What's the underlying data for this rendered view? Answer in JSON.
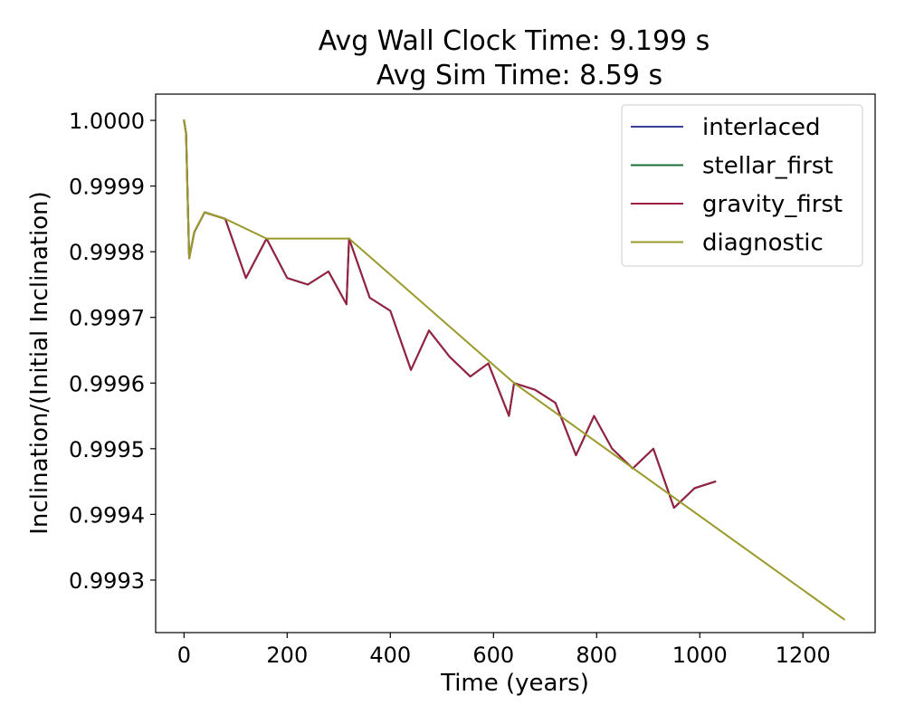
{
  "chart_data": {
    "type": "line",
    "title_line1": "Avg Wall Clock Time: 9.199 s",
    "title_line2": "Avg Sim Time: 8.59 s",
    "xlabel": "Time (years)",
    "ylabel": "Inclination/(Initial Inclination)",
    "xlim": [
      -55,
      1340
    ],
    "ylim": [
      0.99922,
      1.00004
    ],
    "xticks": [
      0,
      200,
      400,
      600,
      800,
      1000,
      1200
    ],
    "xtick_labels": [
      "0",
      "200",
      "400",
      "600",
      "800",
      "1000",
      "1200"
    ],
    "yticks": [
      0.9993,
      0.9994,
      0.9995,
      0.9996,
      0.9997,
      0.9998,
      0.9999,
      1.0
    ],
    "ytick_labels": [
      "0.9993",
      "0.9994",
      "0.9995",
      "0.9996",
      "0.9997",
      "0.9998",
      "0.9999",
      "1.0000"
    ],
    "grid": false,
    "legend_position": "top-right",
    "series": [
      {
        "name": "interlaced",
        "color": "#3a3f98",
        "x": [
          0,
          4,
          10,
          20,
          40,
          80,
          120,
          160,
          200,
          240,
          280,
          315,
          320,
          360,
          400,
          440,
          475,
          515,
          555,
          590,
          630,
          640,
          680,
          720,
          760,
          795,
          830,
          870,
          910,
          950,
          990,
          1030
        ],
        "y": [
          1.0,
          0.99998,
          0.99979,
          0.99983,
          0.99986,
          0.99985,
          0.99976,
          0.99982,
          0.99976,
          0.99975,
          0.99977,
          0.99972,
          0.99982,
          0.99973,
          0.99971,
          0.99962,
          0.99968,
          0.99964,
          0.99961,
          0.99963,
          0.99955,
          0.9996,
          0.99959,
          0.99957,
          0.99949,
          0.99955,
          0.9995,
          0.99947,
          0.9995,
          0.99941,
          0.99944,
          0.99945
        ]
      },
      {
        "name": "stellar_first",
        "color": "#1b6e34",
        "x": [
          0,
          4,
          10,
          20,
          40,
          80,
          120,
          160,
          200,
          240,
          280,
          315,
          320,
          360,
          400,
          440,
          475,
          515,
          555,
          590,
          630,
          640,
          680,
          720,
          760,
          795,
          830,
          870,
          910,
          950,
          990,
          1030
        ],
        "y": [
          1.0,
          0.99998,
          0.99979,
          0.99983,
          0.99986,
          0.99985,
          0.99976,
          0.99982,
          0.99976,
          0.99975,
          0.99977,
          0.99972,
          0.99982,
          0.99973,
          0.99971,
          0.99962,
          0.99968,
          0.99964,
          0.99961,
          0.99963,
          0.99955,
          0.9996,
          0.99959,
          0.99957,
          0.99949,
          0.99955,
          0.9995,
          0.99947,
          0.9995,
          0.99941,
          0.99944,
          0.99945
        ]
      },
      {
        "name": "gravity_first",
        "color": "#9b2142",
        "x": [
          0,
          4,
          10,
          20,
          40,
          80,
          120,
          160,
          200,
          240,
          280,
          315,
          320,
          360,
          400,
          440,
          475,
          515,
          555,
          590,
          630,
          640,
          680,
          720,
          760,
          795,
          830,
          870,
          910,
          950,
          990,
          1030
        ],
        "y": [
          1.0,
          0.99998,
          0.99979,
          0.99983,
          0.99986,
          0.99985,
          0.99976,
          0.99982,
          0.99976,
          0.99975,
          0.99977,
          0.99972,
          0.99982,
          0.99973,
          0.99971,
          0.99962,
          0.99968,
          0.99964,
          0.99961,
          0.99963,
          0.99955,
          0.9996,
          0.99959,
          0.99957,
          0.99949,
          0.99955,
          0.9995,
          0.99947,
          0.9995,
          0.99941,
          0.99944,
          0.99945
        ]
      },
      {
        "name": "diagnostic",
        "color": "#9a9a2c",
        "x": [
          0,
          4,
          10,
          20,
          40,
          80,
          160,
          320,
          640,
          1280
        ],
        "y": [
          1.0,
          0.99998,
          0.99979,
          0.99983,
          0.99986,
          0.99985,
          0.99982,
          0.99982,
          0.9996,
          0.99924
        ]
      }
    ]
  }
}
